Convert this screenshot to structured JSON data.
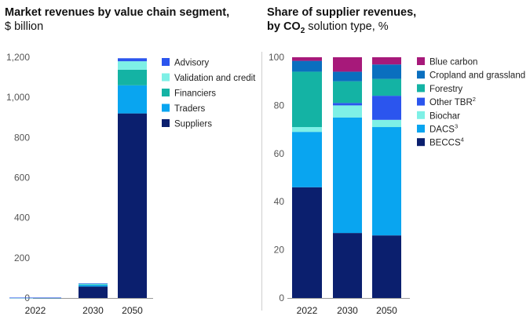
{
  "chart_data": [
    {
      "type": "bar",
      "stacked": true,
      "title": "Market revenues by value chain segment,",
      "subtitle": "$ billion",
      "categories": [
        "2022",
        "2030",
        "2050"
      ],
      "ylim": [
        0,
        1200
      ],
      "yticks": [
        0,
        200,
        400,
        600,
        800,
        "1,000",
        "1,200"
      ],
      "legend_position": "right",
      "series": [
        {
          "name": "Suppliers",
          "color": "#0b1f6e",
          "values": [
            1,
            57,
            920
          ]
        },
        {
          "name": "Traders",
          "color": "#09a5f0",
          "values": [
            0.5,
            8,
            140
          ]
        },
        {
          "name": "Financiers",
          "color": "#14b3a4",
          "values": [
            0.3,
            3,
            78
          ]
        },
        {
          "name": "Validation and credit",
          "color": "#7ef0e6",
          "values": [
            0.2,
            4,
            42
          ]
        },
        {
          "name": "Advisory",
          "color": "#2b55ee",
          "values": [
            0.1,
            1,
            15
          ]
        }
      ]
    },
    {
      "type": "bar",
      "stacked": true,
      "title": "Share of supplier revenues,",
      "subtitle_parts": [
        "by CO",
        "2",
        " solution type, %"
      ],
      "categories": [
        "2022",
        "2030",
        "2050"
      ],
      "ylim": [
        0,
        100
      ],
      "yticks": [
        0,
        20,
        40,
        60,
        80,
        100
      ],
      "legend_position": "right",
      "series": [
        {
          "name": "BECCS",
          "sup": "4",
          "color": "#0b1f6e",
          "values": [
            46,
            27,
            26
          ]
        },
        {
          "name": "DACS",
          "sup": "3",
          "color": "#09a5f0",
          "values": [
            23,
            48,
            45
          ]
        },
        {
          "name": "Biochar",
          "sup": "",
          "color": "#7ef0e6",
          "values": [
            2,
            5,
            3
          ]
        },
        {
          "name": "Other TBR",
          "sup": "2",
          "color": "#2b55ee",
          "values": [
            0,
            1,
            10
          ]
        },
        {
          "name": "Forestry",
          "sup": "",
          "color": "#14b3a4",
          "values": [
            23,
            9,
            7
          ]
        },
        {
          "name": "Cropland and grassland",
          "sup": "",
          "color": "#0a6fbf",
          "values": [
            4.5,
            4,
            6
          ]
        },
        {
          "name": "Blue carbon",
          "sup": "",
          "color": "#a7197a",
          "values": [
            1.5,
            6,
            3
          ]
        }
      ]
    }
  ]
}
